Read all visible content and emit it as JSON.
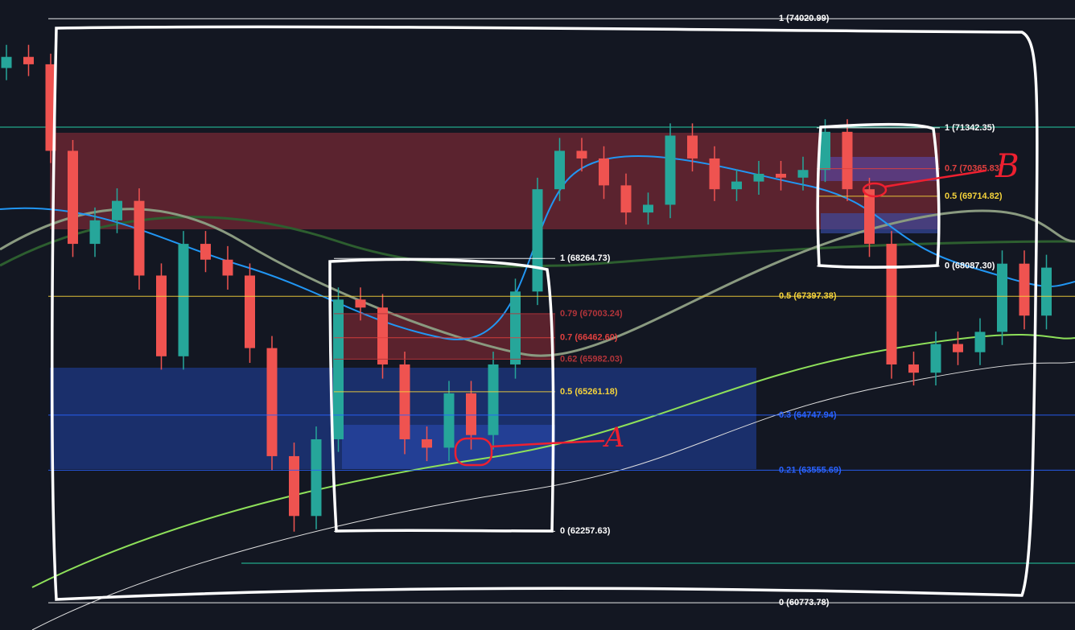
{
  "chart_data": {
    "type": "candlestick",
    "open": [
      72798,
      73072,
      72890,
      70791,
      68602,
      69149,
      69605,
      67872,
      66047,
      68602,
      68237,
      67872,
      66230,
      63857,
      62580,
      64222,
      67324,
      67142,
      65865,
      64222,
      64040,
      65226,
      64314,
      65865,
      67507,
      69879,
      70791,
      70609,
      69970,
      69332,
      69514,
      71156,
      70609,
      69879,
      70061,
      70244,
      70153,
      70335,
      71247,
      69879,
      68602,
      65865,
      65682,
      66321,
      66138,
      66594,
      68145,
      66960
    ],
    "high": [
      73370,
      73370,
      73150,
      71050,
      69450,
      69900,
      69900,
      68150,
      68900,
      68900,
      68550,
      68150,
      66500,
      64150,
      64500,
      67600,
      67600,
      67450,
      66150,
      64500,
      65500,
      65500,
      66150,
      67800,
      70150,
      71100,
      71100,
      70900,
      70250,
      69800,
      71450,
      71450,
      70900,
      70350,
      70550,
      70550,
      70650,
      71550,
      71550,
      70150,
      68900,
      66150,
      66600,
      66600,
      66900,
      68450,
      68450,
      68350
    ],
    "low": [
      72500,
      72600,
      70500,
      68300,
      68300,
      68850,
      67550,
      65750,
      65750,
      67950,
      67550,
      65900,
      63550,
      62250,
      62300,
      63950,
      66850,
      65550,
      63900,
      63750,
      63750,
      64000,
      64000,
      65550,
      67200,
      69600,
      70300,
      69650,
      69050,
      69050,
      69200,
      70300,
      69600,
      69600,
      69750,
      69850,
      69850,
      70050,
      69600,
      68300,
      65550,
      65400,
      65400,
      65850,
      65850,
      66300,
      66650,
      66650
    ],
    "close": [
      73072,
      72890,
      70791,
      68602,
      69149,
      69605,
      67872,
      66047,
      68602,
      68237,
      67872,
      66230,
      63857,
      62580,
      64222,
      67324,
      67142,
      65865,
      64222,
      64040,
      65226,
      64314,
      65865,
      67507,
      69879,
      70791,
      70609,
      69970,
      69332,
      69514,
      71156,
      70609,
      69879,
      70061,
      70244,
      70153,
      70335,
      71247,
      69879,
      68602,
      65865,
      65682,
      66321,
      66138,
      66594,
      68145,
      66960,
      68054
    ],
    "up_color": "#26a69a",
    "down_color": "#ef5350",
    "ylim": [
      60217,
      74489
    ],
    "log": true,
    "fib_sets": [
      {
        "levels": [
          {
            "price": 74020.99,
            "label": "1 (74020.99)",
            "color": "#ffffff"
          },
          {
            "price": 67397.38,
            "label": "0.5 (67397.38)",
            "color": "#f5d33b"
          },
          {
            "price": 64747.94,
            "label": "0.3 (64747.94)",
            "color": "#2962ff"
          },
          {
            "price": 63555.69,
            "label": "0.21 (63555.69)",
            "color": "#2962ff"
          },
          {
            "price": 60773.78,
            "label": "0 (60773.78)",
            "color": "#ffffff"
          }
        ]
      },
      {
        "levels": [
          {
            "price": 68264.73,
            "label": "1 (68264.73)",
            "color": "#ffffff"
          },
          {
            "price": 67003.24,
            "label": "0.79 (67003.24)",
            "color": "#b2343a"
          },
          {
            "price": 66462.6,
            "label": "0.7 (66462.60)",
            "color": "#e0403f"
          },
          {
            "price": 65982.03,
            "label": "0.62 (65982.03)",
            "color": "#b2343a"
          },
          {
            "price": 65261.18,
            "label": "0.5 (65261.18)",
            "color": "#f5d33b"
          },
          {
            "price": 62257.63,
            "label": "0 (62257.63)",
            "color": "#ffffff"
          }
        ]
      },
      {
        "levels": [
          {
            "price": 71342.35,
            "label": "1 (71342.35)",
            "color": "#ffffff"
          },
          {
            "price": 70365.83,
            "label": "0.7 (70365.83)",
            "color": "#e0403f"
          },
          {
            "price": 69714.82,
            "label": "0.5 (69714.82)",
            "color": "#f5d33b"
          },
          {
            "price": 68087.3,
            "label": "0 (68087.30)",
            "color": "#ffffff"
          }
        ]
      }
    ],
    "annotations": [
      "A",
      "B"
    ]
  }
}
